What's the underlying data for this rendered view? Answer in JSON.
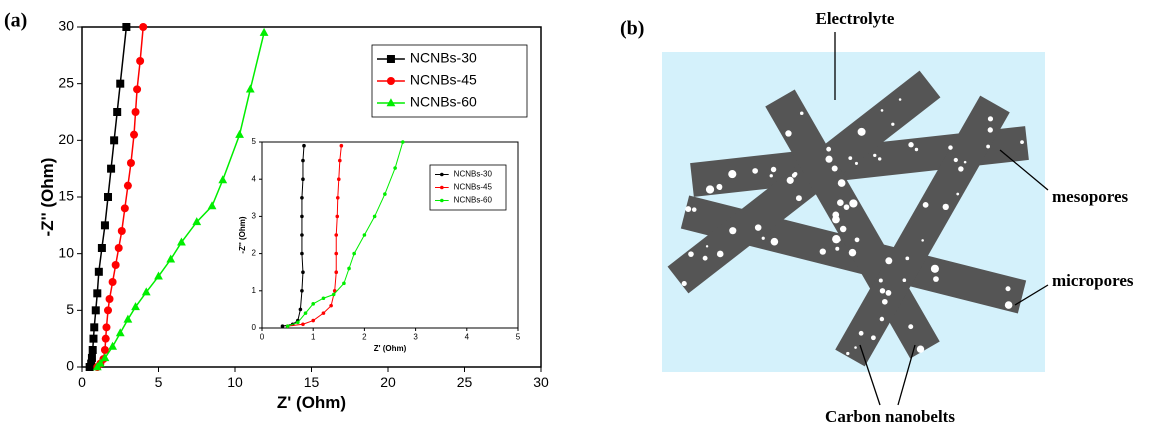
{
  "chart_data": [
    {
      "type": "line",
      "panel_label": "(a)",
      "x_label": "Z' (Ohm)",
      "y_label": "-Z'' (Ohm)",
      "xlim": [
        0,
        30
      ],
      "ylim": [
        0,
        30
      ],
      "xticks": [
        0,
        5,
        10,
        15,
        20,
        25,
        30
      ],
      "yticks": [
        0,
        5,
        10,
        15,
        20,
        25,
        30
      ],
      "legend": "upper right",
      "series": [
        {
          "name": "NCNBs-30",
          "color": "#000000",
          "marker": "square",
          "x": [
            0.5,
            0.6,
            0.65,
            0.7,
            0.75,
            0.8,
            0.9,
            1.0,
            1.1,
            1.3,
            1.5,
            1.7,
            1.9,
            2.1,
            2.3,
            2.5,
            2.9
          ],
          "values": [
            0,
            0.3,
            0.8,
            1.5,
            2.5,
            3.5,
            5,
            6.5,
            8.4,
            10.5,
            12.5,
            15,
            17.5,
            20,
            22.5,
            25,
            30
          ]
        },
        {
          "name": "NCNBs-45",
          "color": "#ff0000",
          "marker": "circle",
          "x": [
            1.0,
            1.2,
            1.4,
            1.5,
            1.55,
            1.6,
            1.7,
            1.8,
            2.0,
            2.2,
            2.4,
            2.6,
            2.8,
            3.0,
            3.2,
            3.4,
            3.5,
            3.6,
            3.8,
            4.0
          ],
          "values": [
            0,
            0.3,
            0.7,
            1.5,
            2.5,
            3.5,
            5,
            6,
            7.5,
            9,
            10.5,
            12,
            14,
            16,
            18,
            20.5,
            22.5,
            24.5,
            27,
            30
          ]
        },
        {
          "name": "NCNBs-60",
          "color": "#00ee00",
          "marker": "triangle",
          "x": [
            1.0,
            1.2,
            1.5,
            2,
            2.5,
            3,
            3.5,
            4.2,
            5.0,
            5.8,
            6.5,
            7.5,
            8.5,
            9.2,
            10.3,
            11.0,
            11.9
          ],
          "values": [
            0,
            0.3,
            0.8,
            1.8,
            3,
            4.2,
            5.3,
            6.6,
            8,
            9.5,
            11,
            12.8,
            14.2,
            16.5,
            20.5,
            24.5,
            29.5
          ]
        }
      ]
    },
    {
      "type": "line",
      "x_label": "Z' (Ohm)",
      "y_label": "-Z'' (Ohm)",
      "xlim": [
        0,
        5
      ],
      "ylim": [
        0,
        5
      ],
      "xticks": [
        0,
        1,
        2,
        3,
        4,
        5
      ],
      "yticks": [
        0,
        1,
        2,
        3,
        4,
        5
      ],
      "legend": "upper right",
      "series": [
        {
          "name": "NCNBs-30",
          "color": "#000000",
          "marker": "circle",
          "x": [
            0.4,
            0.6,
            0.7,
            0.75,
            0.78,
            0.8,
            0.78,
            0.78,
            0.78,
            0.78,
            0.8,
            0.8,
            0.82
          ],
          "values": [
            0.05,
            0.1,
            0.2,
            0.5,
            1,
            1.5,
            2,
            2.5,
            3,
            3.5,
            4,
            4.5,
            4.9
          ]
        },
        {
          "name": "NCNBs-45",
          "color": "#ff0000",
          "marker": "circle",
          "x": [
            0.5,
            0.8,
            1.0,
            1.2,
            1.35,
            1.42,
            1.45,
            1.45,
            1.45,
            1.47,
            1.48,
            1.5,
            1.52,
            1.55
          ],
          "values": [
            0.05,
            0.1,
            0.2,
            0.4,
            0.6,
            1,
            1.5,
            2,
            2.5,
            3,
            3.5,
            4,
            4.5,
            4.9
          ]
        },
        {
          "name": "NCNBs-60",
          "color": "#00ee00",
          "marker": "circle",
          "x": [
            0.5,
            0.7,
            0.85,
            1.0,
            1.2,
            1.4,
            1.6,
            1.7,
            1.8,
            2.0,
            2.2,
            2.4,
            2.6,
            2.75
          ],
          "values": [
            0.05,
            0.15,
            0.4,
            0.65,
            0.8,
            0.9,
            1.2,
            1.6,
            2.0,
            2.5,
            3,
            3.6,
            4.3,
            5
          ]
        }
      ]
    }
  ],
  "diagram": {
    "panel_label": "(b)",
    "labels": [
      "Electrolyte",
      "mesopores",
      "micropores",
      "Carbon nanobelts"
    ]
  }
}
